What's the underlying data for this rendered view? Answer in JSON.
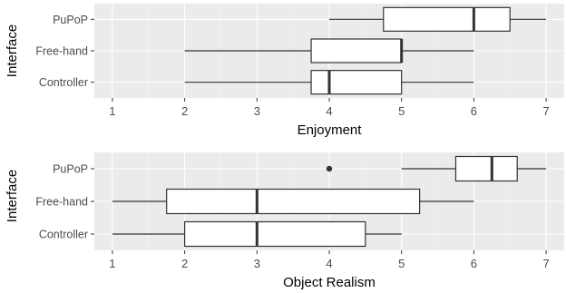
{
  "chart_data": [
    {
      "type": "box",
      "xlabel": "Enjoyment",
      "ylabel": "Interface",
      "xlim": [
        0.75,
        7.25
      ],
      "xticks": [
        1,
        2,
        3,
        4,
        5,
        6,
        7
      ],
      "grid": true,
      "categories": [
        "PuPoP",
        "Free-hand",
        "Controller"
      ],
      "boxes": [
        {
          "name": "PuPoP",
          "min": 4,
          "q1": 4.75,
          "median": 6,
          "q3": 6.5,
          "max": 7,
          "outliers": []
        },
        {
          "name": "Free-hand",
          "min": 2,
          "q1": 3.75,
          "median": 5,
          "q3": 5,
          "max": 6,
          "outliers": []
        },
        {
          "name": "Controller",
          "min": 2,
          "q1": 3.75,
          "median": 4,
          "q3": 5,
          "max": 6,
          "outliers": []
        }
      ]
    },
    {
      "type": "box",
      "xlabel": "Object Realism",
      "ylabel": "Interface",
      "xlim": [
        0.75,
        7.25
      ],
      "xticks": [
        1,
        2,
        3,
        4,
        5,
        6,
        7
      ],
      "grid": true,
      "categories": [
        "PuPoP",
        "Free-hand",
        "Controller"
      ],
      "boxes": [
        {
          "name": "PuPoP",
          "min": 5,
          "q1": 5.75,
          "median": 6.25,
          "q3": 6.6,
          "max": 7,
          "outliers": [
            4
          ]
        },
        {
          "name": "Free-hand",
          "min": 1,
          "q1": 1.75,
          "median": 3,
          "q3": 5.25,
          "max": 6,
          "outliers": []
        },
        {
          "name": "Controller",
          "min": 1,
          "q1": 2,
          "median": 3,
          "q3": 4.5,
          "max": 5,
          "outliers": []
        }
      ]
    }
  ]
}
